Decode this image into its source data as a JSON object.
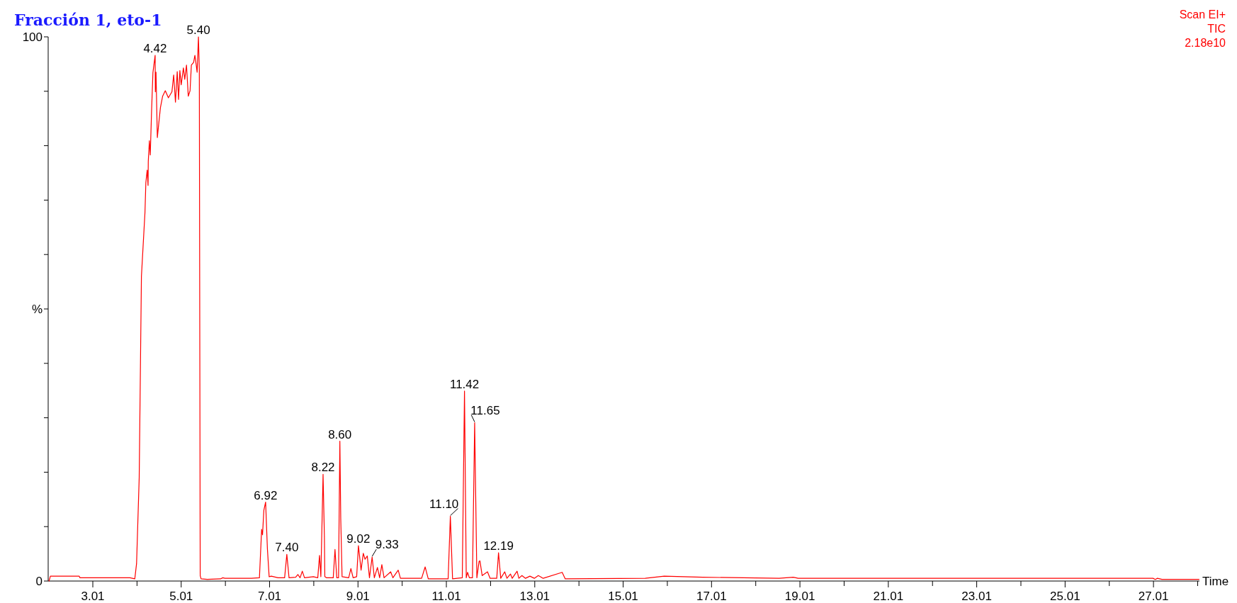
{
  "chart_data": {
    "type": "line",
    "title": "Fracción 1, eto-1",
    "xlabel": "Time",
    "annotations": [
      "Scan EI+",
      "TIC",
      "2.18e10",
      {
        "text": "4.42",
        "x": 4.42,
        "y": 96.6
      },
      {
        "text": "5.40",
        "x": 5.4,
        "y": 100
      },
      {
        "text": "6.92",
        "x": 6.92,
        "y": 14.5
      },
      {
        "text": "7.40",
        "x": 7.4,
        "y": 4.9
      },
      {
        "text": "8.22",
        "x": 8.22,
        "y": 19.6
      },
      {
        "text": "8.60",
        "x": 8.6,
        "y": 25.7
      },
      {
        "text": "9.02",
        "x": 9.02,
        "y": 6.5
      },
      {
        "text": "9.33",
        "x": 9.33,
        "y": 4.4
      },
      {
        "text": "11.10",
        "x": 11.1,
        "y": 11.9
      },
      {
        "text": "11.42",
        "x": 11.42,
        "y": 34.9
      },
      {
        "text": "11.65",
        "x": 11.65,
        "y": 29.1
      },
      {
        "text": "12.19",
        "x": 12.19,
        "y": 5.2
      }
    ],
    "xlim": [
      2.0,
      28.05
    ],
    "ylim": [
      0,
      100
    ],
    "xticks": [
      {
        "value": 3.01,
        "label": "3.01"
      },
      {
        "value": 4.01,
        "label": null
      },
      {
        "value": 5.01,
        "label": "5.01"
      },
      {
        "value": 6.01,
        "label": null
      },
      {
        "value": 7.01,
        "label": "7.01"
      },
      {
        "value": 8.01,
        "label": null
      },
      {
        "value": 9.01,
        "label": "9.01"
      },
      {
        "value": 10.01,
        "label": null
      },
      {
        "value": 11.01,
        "label": "11.01"
      },
      {
        "value": 12.01,
        "label": null
      },
      {
        "value": 13.01,
        "label": "13.01"
      },
      {
        "value": 14.01,
        "label": null
      },
      {
        "value": 15.01,
        "label": "15.01"
      },
      {
        "value": 16.01,
        "label": null
      },
      {
        "value": 17.01,
        "label": "17.01"
      },
      {
        "value": 18.01,
        "label": null
      },
      {
        "value": 19.01,
        "label": "19.01"
      },
      {
        "value": 20.01,
        "label": null
      },
      {
        "value": 21.01,
        "label": "21.01"
      },
      {
        "value": 22.01,
        "label": null
      },
      {
        "value": 23.01,
        "label": "23.01"
      },
      {
        "value": 24.01,
        "label": null
      },
      {
        "value": 25.01,
        "label": "25.01"
      },
      {
        "value": 26.01,
        "label": null
      },
      {
        "value": 27.01,
        "label": "27.01"
      },
      {
        "value": 28.01,
        "label": null
      }
    ],
    "yticks": [
      0,
      {
        "value": 10,
        "label": null
      },
      {
        "value": 20,
        "label": null
      },
      {
        "value": 30,
        "label": null
      },
      {
        "value": 40,
        "label": null
      },
      {
        "value": 50,
        "label": "%"
      },
      {
        "value": 60,
        "label": null
      },
      {
        "value": 70,
        "label": null
      },
      {
        "value": 80,
        "label": null
      },
      {
        "value": 90,
        "label": null
      },
      100
    ],
    "grid": false,
    "marker": "none",
    "line_style": "solid",
    "series": [
      {
        "color": "#ff0000",
        "x": [
          2.02,
          2.05,
          2.7,
          2.72,
          3.85,
          3.96,
          4.0,
          4.06,
          4.11,
          4.19,
          4.21,
          4.24,
          4.26,
          4.265,
          4.29,
          4.31,
          4.34,
          4.37,
          4.42,
          4.425,
          4.44,
          4.47,
          4.5,
          4.54,
          4.59,
          4.65,
          4.72,
          4.8,
          4.84,
          4.88,
          4.92,
          4.95,
          4.98,
          5.01,
          5.06,
          5.09,
          5.13,
          5.17,
          5.21,
          5.24,
          5.29,
          5.32,
          5.35,
          5.37,
          5.4,
          5.42,
          5.44,
          5.46,
          5.6,
          5.9,
          5.95,
          6.0,
          6.6,
          6.78,
          6.83,
          6.85,
          6.88,
          6.92,
          6.96,
          7.0,
          7.05,
          7.2,
          7.35,
          7.4,
          7.45,
          7.6,
          7.65,
          7.7,
          7.75,
          7.8,
          8.0,
          8.1,
          8.14,
          8.17,
          8.22,
          8.25,
          8.26,
          8.3,
          8.45,
          8.49,
          8.53,
          8.57,
          8.6,
          8.62,
          8.65,
          8.8,
          8.85,
          8.9,
          8.98,
          9.02,
          9.08,
          9.13,
          9.17,
          9.22,
          9.27,
          9.33,
          9.38,
          9.45,
          9.5,
          9.55,
          9.6,
          9.75,
          9.8,
          9.92,
          9.97,
          10.45,
          10.53,
          10.6,
          11.05,
          11.1,
          11.15,
          11.37,
          11.42,
          11.46,
          11.49,
          11.53,
          11.6,
          11.65,
          11.7,
          11.75,
          11.77,
          11.82,
          11.94,
          12.0,
          12.15,
          12.19,
          12.24,
          12.33,
          12.38,
          12.46,
          12.5,
          12.61,
          12.65,
          12.72,
          12.8,
          12.9,
          13.0,
          13.09,
          13.2,
          13.63,
          13.7,
          15.51,
          15.94,
          16.81,
          18.54,
          18.86,
          18.97,
          27.0,
          27.05,
          27.1,
          27.2,
          28.04
        ],
        "values": [
          0,
          0.9,
          0.9,
          0.6,
          0.6,
          0.4,
          3.2,
          19.1,
          56,
          67.7,
          73.2,
          75.5,
          72.7,
          77.1,
          80.9,
          78.3,
          86.5,
          93.4,
          96.6,
          89.9,
          93.5,
          81.5,
          83.9,
          87,
          89.1,
          90.1,
          88.8,
          89.9,
          93,
          88,
          93.6,
          88.5,
          93.8,
          91.2,
          94.3,
          92.2,
          94.8,
          89.1,
          90.1,
          94.8,
          95.3,
          96.6,
          94.8,
          93.5,
          100,
          94,
          1.0,
          0.4,
          0.3,
          0.4,
          0.6,
          0.5,
          0.5,
          0.6,
          9.5,
          8.5,
          13,
          14.5,
          6,
          0.8,
          0.9,
          0.6,
          0.6,
          4.9,
          0.6,
          0.7,
          1.2,
          0.6,
          1.8,
          0.6,
          0.8,
          0.6,
          4.7,
          0.8,
          19.6,
          8.2,
          0.8,
          0.6,
          0.6,
          5.8,
          0.6,
          0.6,
          25.7,
          11.5,
          0.8,
          0.6,
          2.3,
          0.6,
          0.8,
          6.5,
          2,
          5.1,
          4,
          4.6,
          0.6,
          4.4,
          0.6,
          2.5,
          0.6,
          3,
          0.6,
          1.7,
          0.6,
          2,
          0.5,
          0.5,
          2.6,
          0.4,
          0.4,
          11.9,
          0.4,
          0.6,
          34.9,
          0.6,
          1.6,
          0.6,
          0.6,
          29.1,
          0.6,
          3.6,
          3.7,
          1,
          1.7,
          0.5,
          0.5,
          5.2,
          0.5,
          1.7,
          0.5,
          1.3,
          0.5,
          1.8,
          0.5,
          1,
          0.5,
          0.9,
          0.5,
          1,
          0.5,
          1.6,
          0.4,
          0.5,
          0.9,
          0.7,
          0.5,
          0.7,
          0.5,
          0.5,
          0.3,
          0.5,
          0.3,
          0.3
        ]
      }
    ]
  }
}
